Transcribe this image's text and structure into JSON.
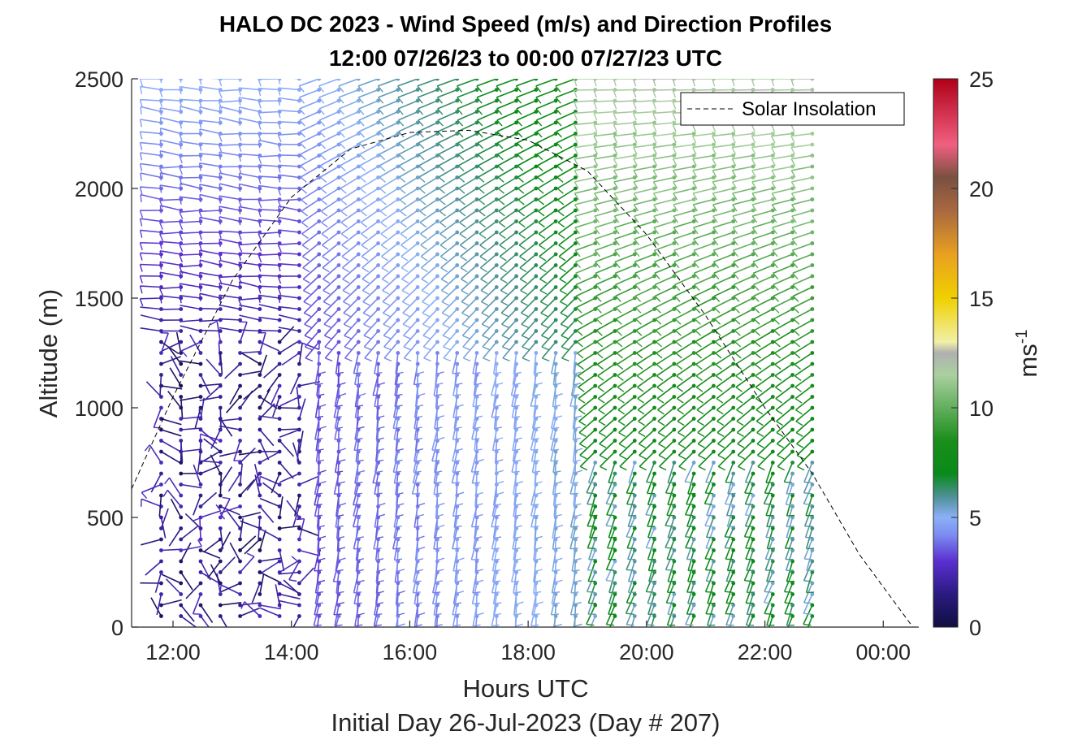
{
  "chart_data": {
    "type": "wind-barb-profile",
    "title_line1": "HALO DC 2023 - Wind Speed (m/s) and Direction Profiles",
    "title_line2": "12:00 07/26/23 to 00:00 07/27/23  UTC",
    "xlabel": "Hours UTC",
    "ylabel": "Altitude (m)",
    "footer": "Initial Day 26-Jul-2023 (Day # 207)",
    "xlim_hours": [
      11.3,
      24.6
    ],
    "ylim": [
      0,
      2500
    ],
    "x_ticks": [
      {
        "value": 12,
        "label": "12:00"
      },
      {
        "value": 14,
        "label": "14:00"
      },
      {
        "value": 16,
        "label": "16:00"
      },
      {
        "value": 18,
        "label": "18:00"
      },
      {
        "value": 20,
        "label": "20:00"
      },
      {
        "value": 22,
        "label": "22:00"
      },
      {
        "value": 24,
        "label": "00:00"
      }
    ],
    "y_ticks": [
      {
        "value": 0,
        "label": "0"
      },
      {
        "value": 500,
        "label": "500"
      },
      {
        "value": 1000,
        "label": "1000"
      },
      {
        "value": 1500,
        "label": "1500"
      },
      {
        "value": 2000,
        "label": "2000"
      },
      {
        "value": 2500,
        "label": "2500"
      }
    ],
    "profile_times_hours": [
      11.8,
      23.1
    ],
    "profile_interval_minutes": 20,
    "altitude_levels_m": [
      50,
      2500
    ],
    "altitude_step_m": 50,
    "legend": {
      "entries": [
        {
          "label": "Solar Insolation",
          "style": "dashed black"
        }
      ],
      "placement": "top-right"
    },
    "solar_insolation_curve": {
      "x_hours": [
        11.3,
        12.0,
        13.0,
        14.0,
        15.0,
        16.0,
        17.0,
        18.0,
        19.0,
        20.0,
        21.0,
        22.0,
        22.8,
        23.6,
        24.5
      ],
      "y_m": [
        630,
        1050,
        1580,
        1960,
        2180,
        2255,
        2265,
        2220,
        2080,
        1790,
        1420,
        1000,
        700,
        330,
        0
      ]
    },
    "wind_regimes": [
      {
        "time_hours": [
          11.8,
          14.2
        ],
        "altitude_m": [
          0,
          1300
        ],
        "speed_ms": [
          0.5,
          3
        ],
        "direction": "variable"
      },
      {
        "time_hours": [
          11.8,
          14.2
        ],
        "altitude_m": [
          1300,
          2500
        ],
        "speed_ms": [
          2,
          5
        ],
        "direction": "westerly"
      },
      {
        "time_hours": [
          14.2,
          18.8
        ],
        "altitude_m": [
          0,
          1300
        ],
        "speed_ms": [
          3,
          5
        ],
        "direction": "southerly"
      },
      {
        "time_hours": [
          14.2,
          18.8
        ],
        "altitude_m": [
          1300,
          2500
        ],
        "speed_ms": [
          3,
          7
        ],
        "direction": "southwesterly"
      },
      {
        "time_hours": [
          18.8,
          23.1
        ],
        "altitude_m": [
          0,
          800
        ],
        "speed_ms": [
          5,
          8
        ],
        "direction": "south-southwesterly"
      },
      {
        "time_hours": [
          18.8,
          23.1
        ],
        "altitude_m": [
          800,
          2500
        ],
        "speed_ms": [
          7,
          12
        ],
        "direction": "southwesterly to westerly"
      }
    ],
    "colorbar": {
      "label": "ms",
      "label_superscript": "-1",
      "range": [
        0,
        25
      ],
      "ticks": [
        {
          "value": 0,
          "label": "0"
        },
        {
          "value": 5,
          "label": "5"
        },
        {
          "value": 10,
          "label": "10"
        },
        {
          "value": 15,
          "label": "15"
        },
        {
          "value": 20,
          "label": "20"
        },
        {
          "value": 25,
          "label": "25"
        }
      ],
      "stops": [
        {
          "v": 0,
          "color": "#101040"
        },
        {
          "v": 1.5,
          "color": "#2a1a80"
        },
        {
          "v": 3,
          "color": "#5a2fd0"
        },
        {
          "v": 4.2,
          "color": "#7b8cf0"
        },
        {
          "v": 5,
          "color": "#8cb0f8"
        },
        {
          "v": 6,
          "color": "#4a9090"
        },
        {
          "v": 7,
          "color": "#0a8a1a"
        },
        {
          "v": 8.5,
          "color": "#1a8e1a"
        },
        {
          "v": 11.5,
          "color": "#aad0a0"
        },
        {
          "v": 12.5,
          "color": "#b0b0b0"
        },
        {
          "v": 13,
          "color": "#f0f0a8"
        },
        {
          "v": 15,
          "color": "#f0d000"
        },
        {
          "v": 17,
          "color": "#e8a020"
        },
        {
          "v": 19,
          "color": "#a86840"
        },
        {
          "v": 20.5,
          "color": "#7a5040"
        },
        {
          "v": 22,
          "color": "#f06080"
        },
        {
          "v": 25,
          "color": "#b00018"
        }
      ]
    }
  }
}
